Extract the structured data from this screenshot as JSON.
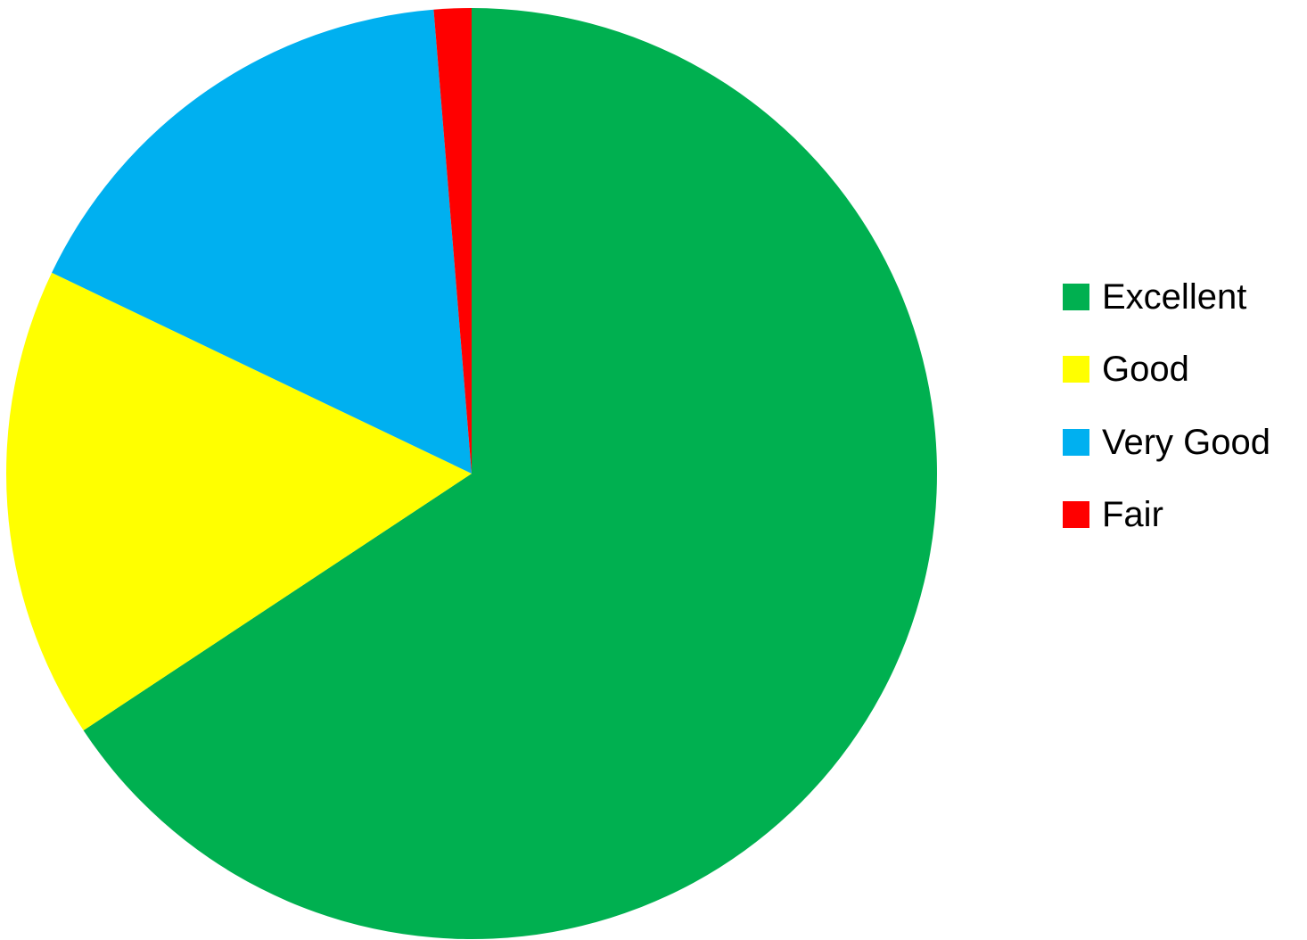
{
  "chart_data": {
    "type": "pie",
    "title": "",
    "start_angle_deg": 0,
    "direction": "clockwise",
    "legend_position": "right",
    "slices": [
      {
        "label": "Excellent",
        "value": 65.7,
        "color": "#00B050"
      },
      {
        "label": "Good",
        "value": 16.4,
        "color": "#FFFF00"
      },
      {
        "label": "Very Good",
        "value": 16.6,
        "color": "#00B0F0"
      },
      {
        "label": "Fair",
        "value": 1.3,
        "color": "#FF0000"
      }
    ]
  },
  "legend": {
    "items": [
      {
        "label": "Excellent",
        "color": "#00B050"
      },
      {
        "label": "Good",
        "color": "#FFFF00"
      },
      {
        "label": "Very Good",
        "color": "#00B0F0"
      },
      {
        "label": "Fair",
        "color": "#FF0000"
      }
    ]
  }
}
